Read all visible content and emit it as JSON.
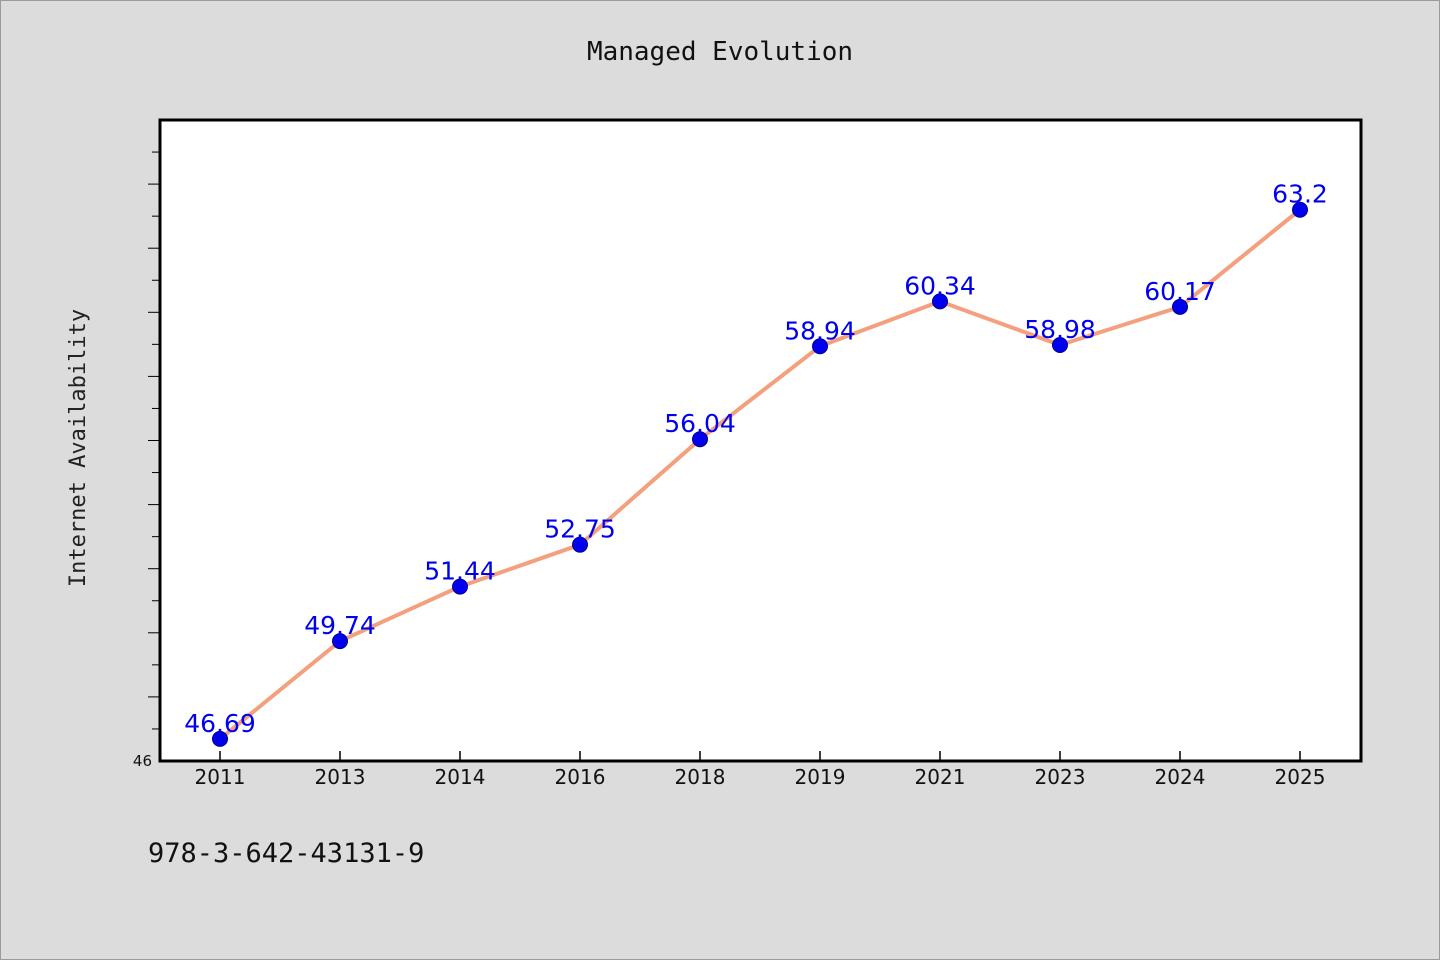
{
  "chart_data": {
    "type": "line",
    "title": "Managed Evolution",
    "xlabel": "",
    "ylabel": "Internet Availability",
    "categories": [
      "2011",
      "2013",
      "2014",
      "2016",
      "2018",
      "2019",
      "2021",
      "2023",
      "2024",
      "2025"
    ],
    "series": [
      {
        "values": [
          46.69,
          49.74,
          51.44,
          52.75,
          56.04,
          58.94,
          60.34,
          58.98,
          60.17,
          63.2
        ],
        "labels": [
          "46.69",
          "49.74",
          "51.44",
          "52.75",
          "56.04",
          "58.94",
          "60.34",
          "58.98",
          "60.17",
          "63.2"
        ],
        "line_color": "#f4a07e",
        "marker_color": "#0000ee"
      }
    ],
    "ylim": [
      46,
      66
    ],
    "y_tick_label": "46",
    "grid": false,
    "legend": "none"
  },
  "footnote": "978-3-642-43131-9"
}
